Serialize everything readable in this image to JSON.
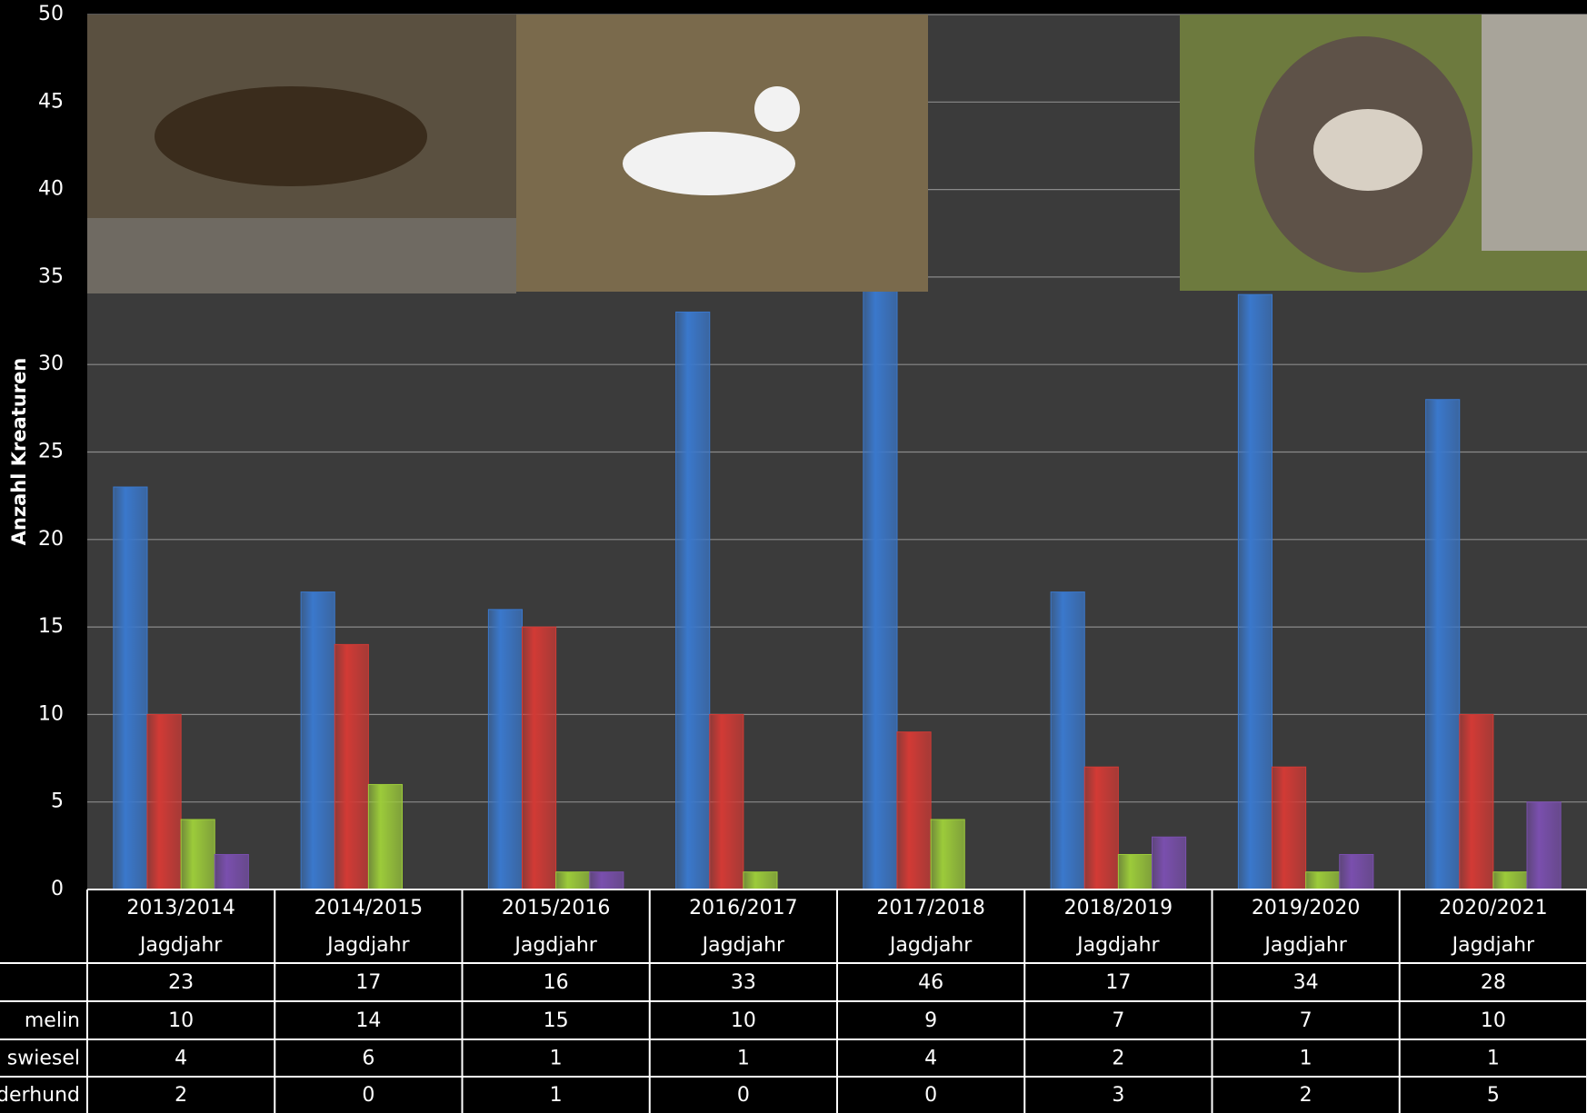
{
  "chart_data": {
    "type": "bar",
    "y_label": "Anzahl Kreaturen",
    "categories": [
      "2013/2014",
      "2014/2015",
      "2015/2016",
      "2016/2017",
      "2017/2018",
      "2018/2019",
      "2019/2020",
      "2020/2021"
    ],
    "category_sublabel": "Jagdjahr",
    "series": [
      {
        "color": "#3a78cc",
        "values": [
          23,
          17,
          16,
          33,
          46,
          17,
          34,
          28
        ]
      },
      {
        "name": "melin",
        "color": "#d23a35",
        "values": [
          10,
          14,
          15,
          10,
          9,
          7,
          7,
          10
        ]
      },
      {
        "name": "swiesel",
        "color": "#9ccb3a",
        "values": [
          4,
          6,
          1,
          1,
          4,
          2,
          1,
          1
        ]
      },
      {
        "name": "derhund",
        "color": "#7a4fae",
        "values": [
          2,
          0,
          1,
          0,
          0,
          3,
          2,
          5
        ]
      }
    ],
    "ylim": [
      0,
      50
    ],
    "yticks": [
      0,
      5,
      10,
      15,
      20,
      25,
      30,
      35,
      40,
      45,
      50
    ],
    "grid": true
  }
}
